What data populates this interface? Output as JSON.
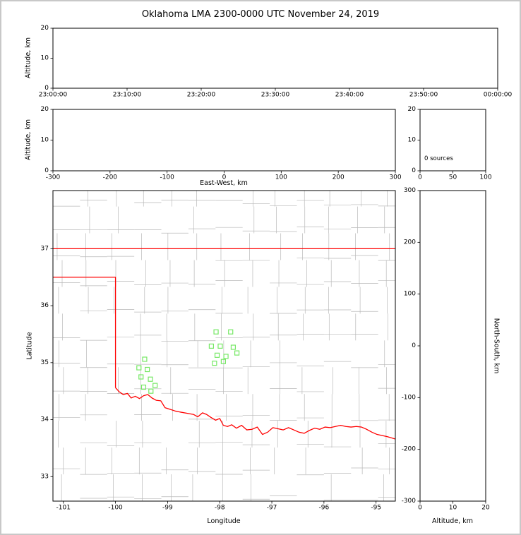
{
  "title": "Oklahoma LMA 2300-0000 UTC November 24, 2019",
  "colors": {
    "axis": "#000000",
    "county_line": "#b9b9b9",
    "state_border": "#ff0000",
    "station": "#76e865",
    "background": "#ffffff",
    "frame": "#c8c8c8"
  },
  "chart_data": [
    {
      "id": "time_height",
      "type": "scatter",
      "ylabel": "Altitude, km",
      "ylim": [
        0,
        20
      ],
      "yticks": [
        0,
        10,
        20
      ],
      "xtick_labels": [
        "23:00:00",
        "23:10:00",
        "23:20:00",
        "23:30:00",
        "23:40:00",
        "23:50:00",
        "00:00:00"
      ],
      "points": []
    },
    {
      "id": "ew_height",
      "type": "scatter",
      "xlabel": "East-West, km",
      "ylabel": "Altitude, km",
      "xlim": [
        -300,
        300
      ],
      "xticks": [
        -300,
        -200,
        -100,
        0,
        100,
        200,
        300
      ],
      "ylim": [
        0,
        20
      ],
      "yticks": [
        0,
        10,
        20
      ],
      "points": []
    },
    {
      "id": "altitude_histogram",
      "type": "histogram",
      "annotation": "0 sources",
      "xlim": [
        0,
        100
      ],
      "xticks": [
        0,
        50,
        100
      ],
      "ylim": [
        0,
        20
      ],
      "yticks": [
        0,
        10,
        20
      ],
      "values": []
    },
    {
      "id": "plan_view_map",
      "type": "map",
      "xlabel": "Longitude",
      "ylabel": "Latitude",
      "xlim": [
        -101.2,
        -94.63
      ],
      "xticks": [
        -101,
        -100,
        -99,
        -98,
        -97,
        -96,
        -95
      ],
      "ylim": [
        32.57,
        38.02
      ],
      "yticks": [
        33,
        34,
        35,
        36,
        37
      ],
      "stations": [
        [
          -98.07,
          35.54
        ],
        [
          -97.79,
          35.54
        ],
        [
          -98.16,
          35.29
        ],
        [
          -97.99,
          35.29
        ],
        [
          -97.74,
          35.27
        ],
        [
          -98.05,
          35.13
        ],
        [
          -97.88,
          35.11
        ],
        [
          -97.67,
          35.17
        ],
        [
          -98.1,
          34.99
        ],
        [
          -97.93,
          35.02
        ],
        [
          -99.44,
          35.06
        ],
        [
          -99.55,
          34.91
        ],
        [
          -99.39,
          34.88
        ],
        [
          -99.51,
          34.75
        ],
        [
          -99.33,
          34.71
        ],
        [
          -99.46,
          34.57
        ],
        [
          -99.24,
          34.6
        ],
        [
          -99.32,
          34.5
        ]
      ],
      "state_boundaries": [
        {
          "name": "oklahoma-kansas-border",
          "points": [
            [
              -101.2,
              37.0
            ],
            [
              -94.63,
              37.0
            ]
          ]
        },
        {
          "name": "texas-panhandle-border",
          "points": [
            [
              -101.2,
              36.5
            ],
            [
              -100.0,
              36.5
            ],
            [
              -100.0,
              34.56
            ]
          ]
        },
        {
          "name": "red-river-border",
          "points": [
            [
              -100.0,
              34.56
            ],
            [
              -99.93,
              34.49
            ],
            [
              -99.85,
              34.44
            ],
            [
              -99.77,
              34.46
            ],
            [
              -99.7,
              34.38
            ],
            [
              -99.62,
              34.41
            ],
            [
              -99.54,
              34.37
            ],
            [
              -99.46,
              34.42
            ],
            [
              -99.38,
              34.44
            ],
            [
              -99.3,
              34.38
            ],
            [
              -99.22,
              34.34
            ],
            [
              -99.13,
              34.33
            ],
            [
              -99.05,
              34.21
            ],
            [
              -98.95,
              34.18
            ],
            [
              -98.85,
              34.15
            ],
            [
              -98.74,
              34.13
            ],
            [
              -98.62,
              34.11
            ],
            [
              -98.5,
              34.09
            ],
            [
              -98.42,
              34.05
            ],
            [
              -98.33,
              34.12
            ],
            [
              -98.25,
              34.09
            ],
            [
              -98.17,
              34.04
            ],
            [
              -98.08,
              33.99
            ],
            [
              -98.0,
              34.02
            ],
            [
              -97.93,
              33.9
            ],
            [
              -97.85,
              33.88
            ],
            [
              -97.77,
              33.91
            ],
            [
              -97.68,
              33.85
            ],
            [
              -97.58,
              33.9
            ],
            [
              -97.48,
              33.82
            ],
            [
              -97.38,
              33.83
            ],
            [
              -97.28,
              33.87
            ],
            [
              -97.18,
              33.74
            ],
            [
              -97.08,
              33.78
            ],
            [
              -96.98,
              33.86
            ],
            [
              -96.88,
              33.84
            ],
            [
              -96.78,
              33.82
            ],
            [
              -96.68,
              33.86
            ],
            [
              -96.58,
              33.82
            ],
            [
              -96.48,
              33.78
            ],
            [
              -96.38,
              33.76
            ],
            [
              -96.28,
              33.81
            ],
            [
              -96.18,
              33.85
            ],
            [
              -96.08,
              33.83
            ],
            [
              -95.98,
              33.87
            ],
            [
              -95.88,
              33.86
            ],
            [
              -95.78,
              33.88
            ],
            [
              -95.68,
              33.9
            ],
            [
              -95.58,
              33.88
            ],
            [
              -95.48,
              33.87
            ],
            [
              -95.38,
              33.88
            ],
            [
              -95.28,
              33.87
            ],
            [
              -95.18,
              33.83
            ],
            [
              -95.08,
              33.78
            ],
            [
              -94.98,
              33.74
            ],
            [
              -94.88,
              33.72
            ],
            [
              -94.78,
              33.7
            ],
            [
              -94.63,
              33.66
            ]
          ]
        }
      ],
      "county_grid": {
        "lon_start": -101.05,
        "lon_spacing": 0.52,
        "lat_start": 32.62,
        "lat_spacing": 0.47,
        "jitter": 0.14,
        "skip_probability": 0.15,
        "seed": 42
      }
    },
    {
      "id": "ns_height",
      "type": "scatter",
      "xlabel": "Altitude, km",
      "ylabel_right": "North-South, km",
      "xlim": [
        0,
        20
      ],
      "xticks": [
        0,
        10,
        20
      ],
      "ylim": [
        -300,
        300
      ],
      "yticks": [
        -300,
        -200,
        -100,
        0,
        100,
        200,
        300
      ],
      "points": []
    }
  ]
}
